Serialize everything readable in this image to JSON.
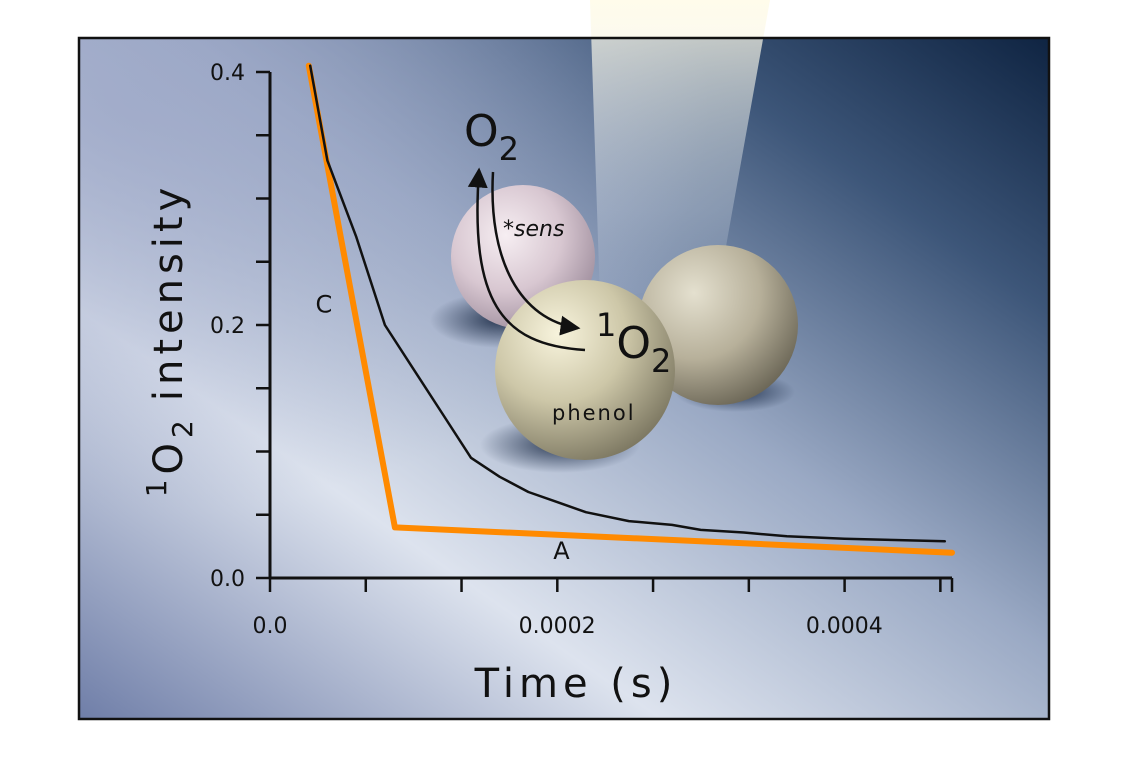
{
  "chart_data": {
    "type": "line",
    "title": "",
    "xlabel": "Time (s)",
    "ylabel_superscript": "1",
    "ylabel_base": "O",
    "ylabel_subscript": "2",
    "ylabel_rest": "intensity",
    "xlim": [
      0.0,
      0.000475
    ],
    "ylim": [
      0.0,
      0.4
    ],
    "x_ticks": [
      {
        "value": 0.0,
        "label": "0.0"
      },
      {
        "value": 0.0002,
        "label": "0.0002"
      },
      {
        "value": 0.0004,
        "label": "0.0004"
      }
    ],
    "y_ticks": [
      {
        "value": 0.0,
        "label": "0.0"
      },
      {
        "value": 0.2,
        "label": "0.2"
      },
      {
        "value": 0.4,
        "label": "0.4"
      }
    ],
    "x_minor_step": 6.67e-05,
    "y_minor_step": 0.05,
    "series": [
      {
        "color": "#ff8a00",
        "x": [
          2.7e-05,
          8.7e-05,
          0.000475
        ],
        "y": [
          0.405,
          0.04,
          0.02
        ]
      },
      {
        "color": "#111111",
        "x": [
          2.8e-05,
          4e-05,
          6e-05,
          8e-05,
          0.0001,
          0.00012,
          0.00014,
          0.00016,
          0.00018,
          0.0002,
          0.00022,
          0.00025,
          0.00028,
          0.0003,
          0.00033,
          0.00036,
          0.0004,
          0.000435,
          0.00047
        ],
        "y": [
          0.405,
          0.33,
          0.27,
          0.2,
          0.165,
          0.13,
          0.095,
          0.08,
          0.068,
          0.06,
          0.052,
          0.045,
          0.042,
          0.038,
          0.036,
          0.033,
          0.031,
          0.03,
          0.029
        ]
      }
    ],
    "annotations": [
      {
        "text": "C",
        "x": 3.75e-05,
        "y": 0.21
      },
      {
        "text": "A",
        "x": 0.000203,
        "y": 0.015
      }
    ],
    "inset": {
      "o2_base": "O",
      "o2_sub": "2",
      "sens": "*sens",
      "singlet_sup": "1",
      "singlet_base": "O",
      "singlet_sub": "2",
      "phenol": "phenol"
    },
    "colors": {
      "frame": "#111111",
      "background_light": "#dfe4ef",
      "background_dark": "#102443",
      "orange": "#ff8a00"
    }
  }
}
